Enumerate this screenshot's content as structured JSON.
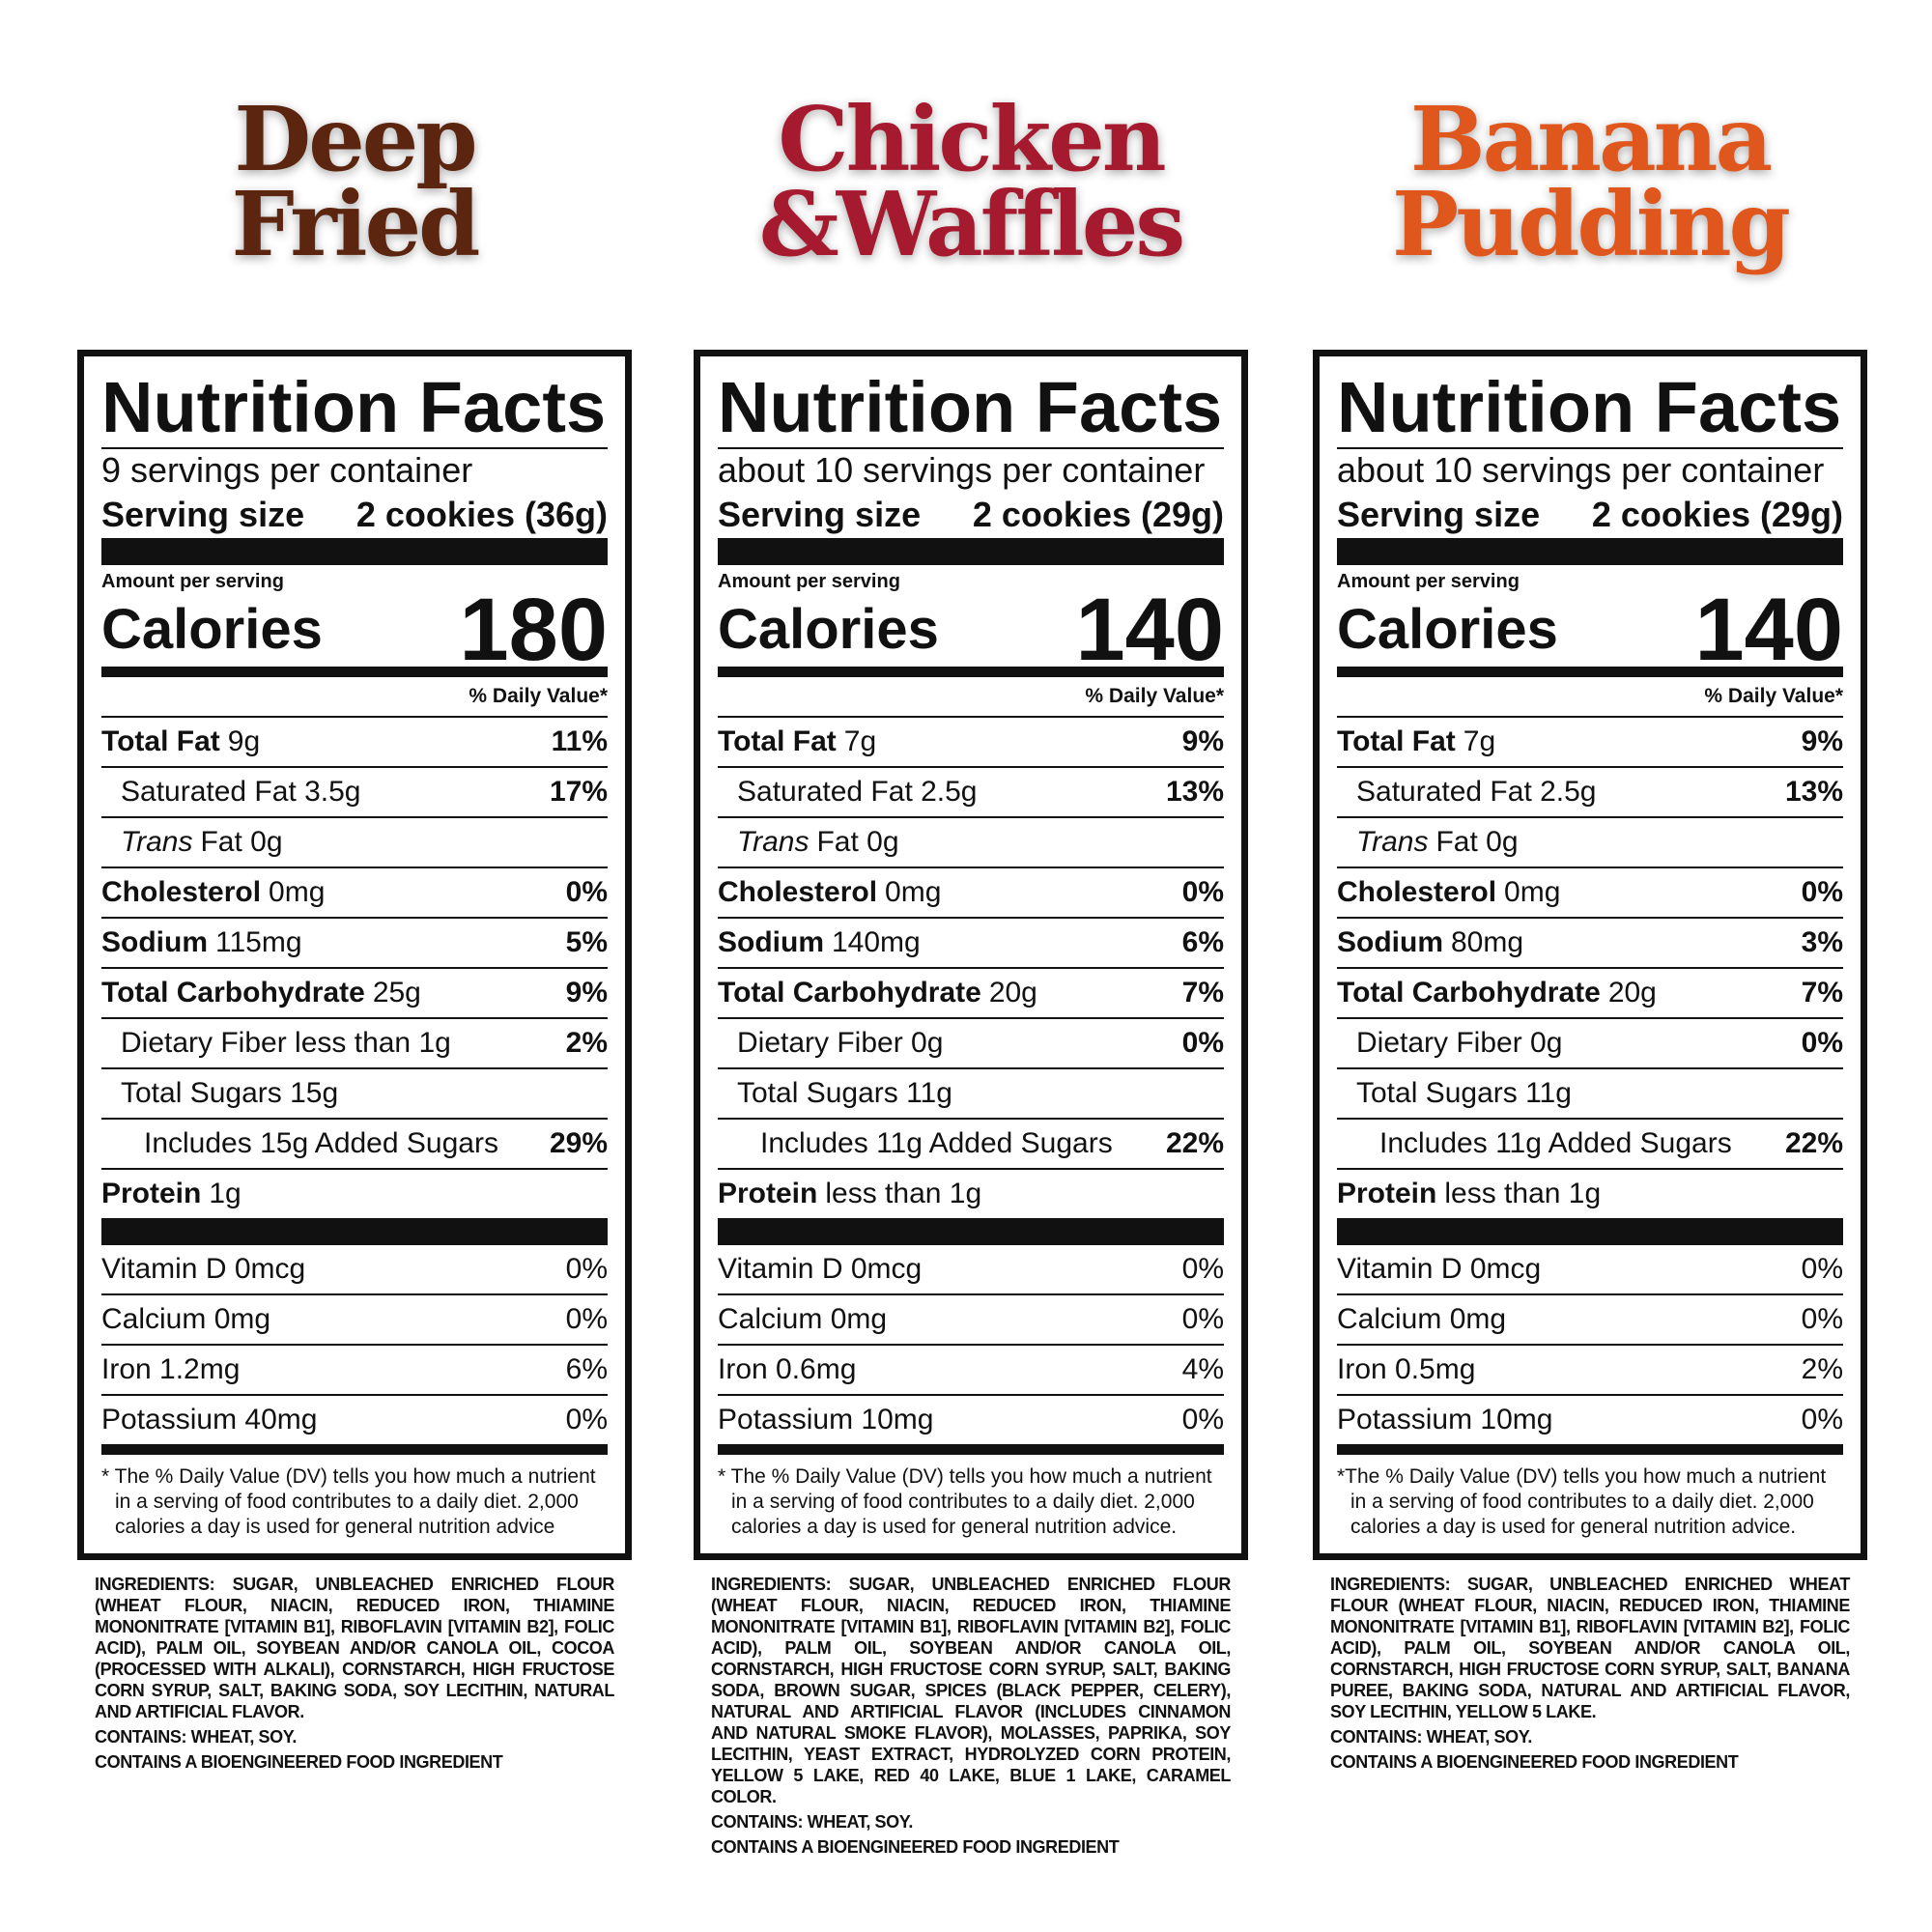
{
  "panels": [
    {
      "title": [
        "Deep",
        "Fried"
      ],
      "color": "#5b2510",
      "heading": "Nutrition Facts",
      "servings": "9 servings per container",
      "serving_size_label": "Serving size",
      "serving_size": "2 cookies (36g)",
      "amount_label": "Amount per serving",
      "calories_label": "Calories",
      "calories": "180",
      "dv_header": "% Daily Value*",
      "rows": [
        {
          "kind": "main",
          "name": "Total Fat",
          "amount": "9g",
          "dv": "11%"
        },
        {
          "kind": "sub",
          "name": "Saturated Fat 3.5g",
          "dv": "17%"
        },
        {
          "kind": "sub",
          "italic": "Trans",
          "name": "Fat 0g"
        },
        {
          "kind": "main",
          "name": "Cholesterol",
          "amount": "0mg",
          "dv": "0%"
        },
        {
          "kind": "main",
          "name": "Sodium",
          "amount": "115mg",
          "dv": "5%"
        },
        {
          "kind": "main",
          "name": "Total Carbohydrate",
          "amount": "25g",
          "dv": "9%"
        },
        {
          "kind": "sub",
          "name": "Dietary Fiber less than 1g",
          "dv": "2%"
        },
        {
          "kind": "sub",
          "name": "Total Sugars 15g"
        },
        {
          "kind": "added",
          "name": "Includes 15g Added Sugars",
          "dv": "29%"
        },
        {
          "kind": "main",
          "name": "Protein",
          "amount": "1g"
        }
      ],
      "vitamins": [
        {
          "name": "Vitamin D 0mcg",
          "dv": "0%"
        },
        {
          "name": "Calcium 0mg",
          "dv": "0%"
        },
        {
          "name": "Iron 1.2mg",
          "dv": "6%"
        },
        {
          "name": "Potassium 40mg",
          "dv": "0%"
        }
      ],
      "footnote": "* The % Daily Value (DV) tells you how much a nutrient in a serving of food contributes to a daily diet. 2,000 calories a day is used for general nutrition advice",
      "ingredients_label": "INGREDIENTS:",
      "ingredients": "SUGAR, UNBLEACHED ENRICHED FLOUR (WHEAT FLOUR, NIACIN, REDUCED IRON, THIAMINE MONONITRATE [VITAMIN B1], RIBOFLAVIN [VITAMIN B2], FOLIC ACID), PALM OIL, SOYBEAN AND/OR CANOLA OIL, COCOA (PROCESSED WITH ALKALI), CORNSTARCH, HIGH FRUCTOSE CORN SYRUP, SALT, BAKING SODA, SOY LECITHIN, NATURAL AND ARTIFICIAL FLAVOR.",
      "contains": "CONTAINS: WHEAT, SOY.",
      "bioengineered": "CONTAINS A BIOENGINEERED FOOD INGREDIENT"
    },
    {
      "title": [
        "Chicken",
        "&Waffles"
      ],
      "color": "#a61a2f",
      "heading": "Nutrition Facts",
      "servings": "about 10 servings per container",
      "serving_size_label": "Serving size",
      "serving_size": "2 cookies (29g)",
      "amount_label": "Amount per serving",
      "calories_label": "Calories",
      "calories": "140",
      "dv_header": "% Daily Value*",
      "rows": [
        {
          "kind": "main",
          "name": "Total Fat",
          "amount": "7g",
          "dv": "9%"
        },
        {
          "kind": "sub",
          "name": "Saturated Fat 2.5g",
          "dv": "13%"
        },
        {
          "kind": "sub",
          "italic": "Trans",
          "name": "Fat 0g"
        },
        {
          "kind": "main",
          "name": "Cholesterol",
          "amount": "0mg",
          "dv": "0%"
        },
        {
          "kind": "main",
          "name": "Sodium",
          "amount": "140mg",
          "dv": "6%"
        },
        {
          "kind": "main",
          "name": "Total Carbohydrate",
          "amount": "20g",
          "dv": "7%"
        },
        {
          "kind": "sub",
          "name": "Dietary Fiber 0g",
          "dv": "0%"
        },
        {
          "kind": "sub",
          "name": "Total Sugars 11g"
        },
        {
          "kind": "added",
          "name": "Includes 11g Added Sugars",
          "dv": "22%"
        },
        {
          "kind": "main",
          "name": "Protein",
          "amount": "less than 1g"
        }
      ],
      "vitamins": [
        {
          "name": "Vitamin D 0mcg",
          "dv": "0%"
        },
        {
          "name": "Calcium 0mg",
          "dv": "0%"
        },
        {
          "name": "Iron 0.6mg",
          "dv": "4%"
        },
        {
          "name": "Potassium 10mg",
          "dv": "0%"
        }
      ],
      "footnote": "* The % Daily Value (DV) tells you how much a nutrient in a serving of food contributes to a daily diet. 2,000 calories a day is used for general nutrition advice.",
      "ingredients_label": "INGREDIENTS:",
      "ingredients": "SUGAR, UNBLEACHED ENRICHED FLOUR (WHEAT FLOUR, NIACIN, REDUCED IRON, THIAMINE MONONITRATE [VITAMIN B1], RIBOFLAVIN [VITAMIN B2], FOLIC ACID), PALM OIL, SOYBEAN AND/OR CANOLA OIL, CORNSTARCH, HIGH FRUCTOSE CORN SYRUP, SALT, BAKING SODA, BROWN SUGAR, SPICES (BLACK PEPPER, CELERY), NATURAL AND ARTIFICIAL FLAVOR (INCLUDES CINNAMON AND NATURAL SMOKE FLAVOR), MOLASSES, PAPRIKA, SOY LECITHIN, YEAST EXTRACT, HYDROLYZED CORN PROTEIN, YELLOW 5 LAKE, RED 40 LAKE, BLUE 1 LAKE, CARAMEL COLOR.",
      "contains": "CONTAINS: WHEAT, SOY.",
      "bioengineered": "CONTAINS A BIOENGINEERED FOOD INGREDIENT"
    },
    {
      "title": [
        "Banana",
        "Pudding"
      ],
      "color": "#e0571d",
      "heading": "Nutrition Facts",
      "servings": "about 10 servings per container",
      "serving_size_label": "Serving size",
      "serving_size": "2 cookies (29g)",
      "amount_label": "Amount per serving",
      "calories_label": "Calories",
      "calories": "140",
      "dv_header": "% Daily Value*",
      "rows": [
        {
          "kind": "main",
          "name": "Total Fat",
          "amount": "7g",
          "dv": "9%"
        },
        {
          "kind": "sub",
          "name": "Saturated Fat 2.5g",
          "dv": "13%"
        },
        {
          "kind": "sub",
          "italic": "Trans",
          "name": "Fat 0g"
        },
        {
          "kind": "main",
          "name": "Cholesterol",
          "amount": "0mg",
          "dv": "0%"
        },
        {
          "kind": "main",
          "name": "Sodium",
          "amount": "80mg",
          "dv": "3%"
        },
        {
          "kind": "main",
          "name": "Total Carbohydrate",
          "amount": "20g",
          "dv": "7%"
        },
        {
          "kind": "sub",
          "name": "Dietary Fiber 0g",
          "dv": "0%"
        },
        {
          "kind": "sub",
          "name": "Total Sugars 11g"
        },
        {
          "kind": "added",
          "name": "Includes 11g Added Sugars",
          "dv": "22%"
        },
        {
          "kind": "main",
          "name": "Protein",
          "amount": "less than 1g"
        }
      ],
      "vitamins": [
        {
          "name": "Vitamin D 0mcg",
          "dv": "0%"
        },
        {
          "name": "Calcium 0mg",
          "dv": "0%"
        },
        {
          "name": "Iron 0.5mg",
          "dv": "2%"
        },
        {
          "name": "Potassium 10mg",
          "dv": "0%"
        }
      ],
      "footnote": "*The % Daily Value (DV) tells you how much a nutrient in a serving of food contributes to a daily diet. 2,000 calories a day is used for general nutrition advice.",
      "ingredients_label": "INGREDIENTS:",
      "ingredients": "SUGAR, UNBLEACHED ENRICHED WHEAT FLOUR (WHEAT FLOUR, NIACIN, REDUCED IRON, THIAMINE MONONITRATE [VITAMIN B1], RIBOFLAVIN [VITAMIN B2], FOLIC ACID), PALM OIL, SOYBEAN AND/OR CANOLA OIL, CORNSTARCH, HIGH FRUCTOSE CORN SYRUP, SALT, BANANA PUREE, BAKING SODA, NATURAL AND ARTIFICIAL FLAVOR, SOY LECITHIN, YELLOW 5 LAKE.",
      "contains": "CONTAINS: WHEAT, SOY.",
      "bioengineered": "CONTAINS A BIOENGINEERED FOOD INGREDIENT"
    }
  ]
}
